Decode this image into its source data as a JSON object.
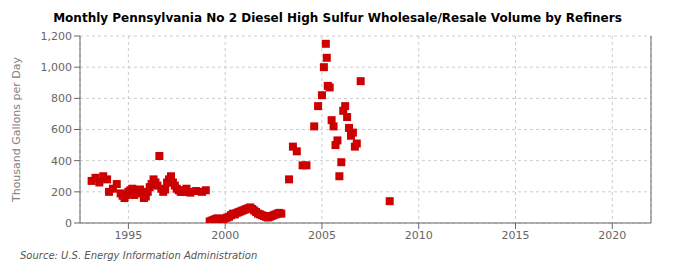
{
  "chart_data": {
    "type": "scatter",
    "title": "Monthly Pennsylvania No 2 Diesel High Sulfur Wholesale/Resale Volume by Refiners",
    "ylabel": "Thousand Gallons per Day",
    "annotation": "Source: U.S. Energy Information Administration",
    "color": "#cc0000",
    "marker": "square",
    "grid": true,
    "xlim": [
      1992.5,
      2022
    ],
    "ylim": [
      0,
      1200
    ],
    "xticks": [
      1995,
      2000,
      2005,
      2010,
      2015,
      2020
    ],
    "yticks": [
      0,
      200,
      400,
      600,
      800,
      {
        "value": 1000,
        "label": "1,000"
      },
      {
        "value": 1200,
        "label": "1,200"
      }
    ],
    "x": [
      1993.1,
      1993.3,
      1993.5,
      1993.7,
      1993.9,
      1994.0,
      1994.2,
      1994.4,
      1994.6,
      1994.7,
      1994.8,
      1994.9,
      1995.0,
      1995.1,
      1995.2,
      1995.3,
      1995.4,
      1995.5,
      1995.6,
      1995.7,
      1995.8,
      1995.9,
      1996.0,
      1996.1,
      1996.2,
      1996.3,
      1996.4,
      1996.5,
      1996.6,
      1996.7,
      1996.8,
      1996.9,
      1997.0,
      1997.1,
      1997.2,
      1997.3,
      1997.4,
      1997.5,
      1997.6,
      1997.7,
      1997.8,
      1997.9,
      1998.0,
      1998.1,
      1998.2,
      1998.5,
      1998.8,
      1999.0,
      1999.2,
      1999.3,
      1999.4,
      1999.5,
      1999.6,
      1999.7,
      1999.8,
      1999.9,
      2000.0,
      2000.1,
      2000.2,
      2000.3,
      2000.4,
      2000.5,
      2000.6,
      2000.7,
      2000.8,
      2000.9,
      2001.0,
      2001.1,
      2001.2,
      2001.3,
      2001.4,
      2001.5,
      2001.6,
      2001.7,
      2001.8,
      2001.9,
      2002.0,
      2002.1,
      2002.2,
      2002.3,
      2002.4,
      2002.5,
      2002.6,
      2002.7,
      2002.8,
      2002.9,
      2003.3,
      2003.5,
      2003.7,
      2004.0,
      2004.2,
      2004.6,
      2004.8,
      2005.0,
      2005.1,
      2005.2,
      2005.25,
      2005.3,
      2005.4,
      2005.5,
      2005.6,
      2005.7,
      2005.8,
      2005.9,
      2006.0,
      2006.1,
      2006.2,
      2006.3,
      2006.4,
      2006.5,
      2006.6,
      2006.7,
      2006.8,
      2007.0,
      2008.5
    ],
    "values": [
      270,
      290,
      260,
      300,
      280,
      200,
      220,
      250,
      190,
      175,
      160,
      180,
      200,
      210,
      220,
      180,
      200,
      195,
      215,
      190,
      160,
      170,
      200,
      230,
      250,
      280,
      260,
      240,
      430,
      220,
      200,
      215,
      260,
      280,
      300,
      260,
      240,
      220,
      210,
      200,
      200,
      210,
      220,
      200,
      195,
      205,
      200,
      210,
      10,
      15,
      20,
      25,
      30,
      20,
      15,
      25,
      30,
      35,
      40,
      50,
      60,
      55,
      65,
      70,
      75,
      80,
      85,
      90,
      95,
      100,
      90,
      80,
      70,
      60,
      55,
      50,
      45,
      40,
      35,
      40,
      45,
      50,
      55,
      60,
      65,
      60,
      280,
      490,
      460,
      370,
      370,
      620,
      750,
      820,
      1000,
      1150,
      1060,
      880,
      870,
      660,
      620,
      500,
      530,
      300,
      390,
      720,
      750,
      680,
      610,
      560,
      580,
      490,
      510,
      910,
      140
    ]
  }
}
